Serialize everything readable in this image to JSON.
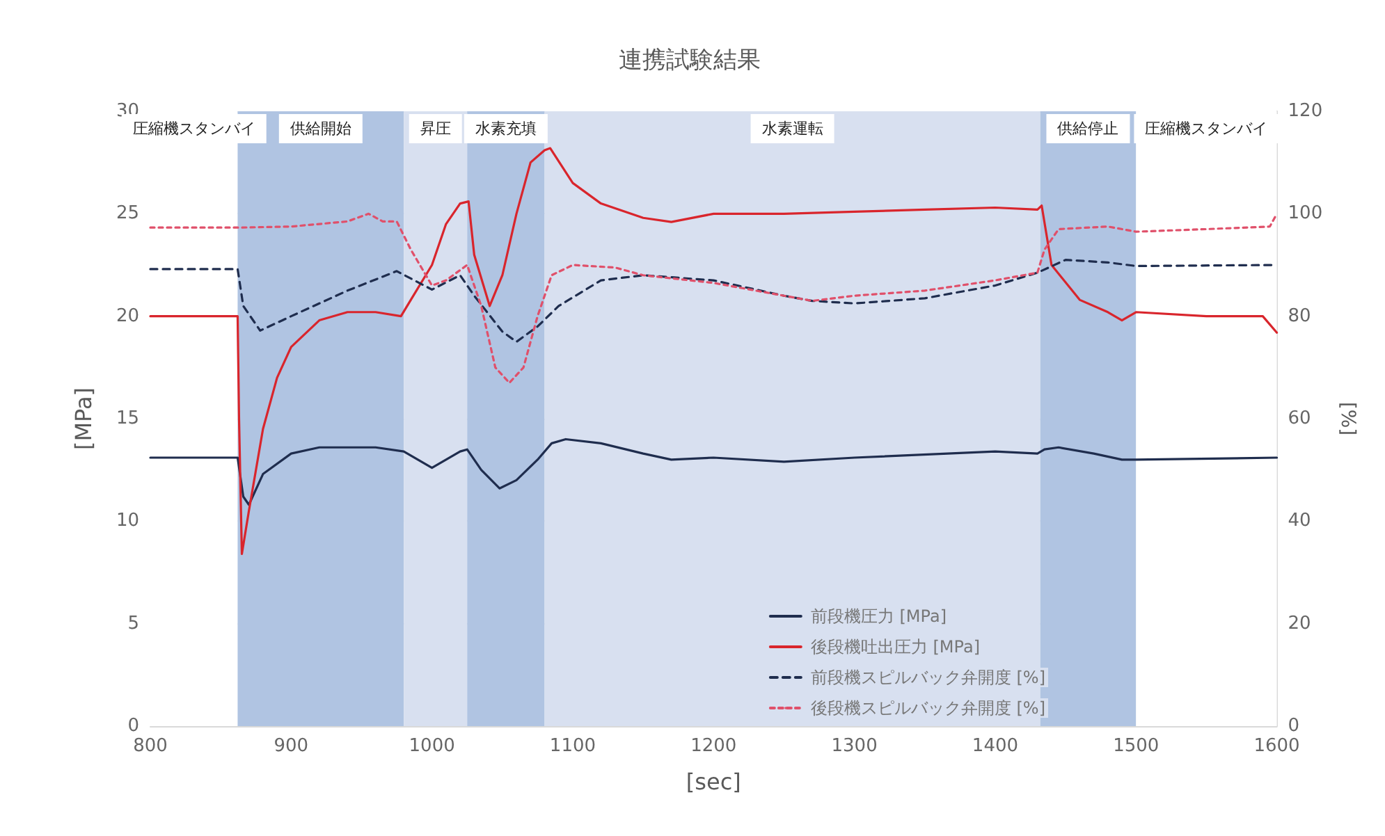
{
  "chart_data": {
    "type": "line",
    "title": "連携試験結果",
    "xlabel": "[sec]",
    "ylabel": "[MPa]",
    "y2label": "[%]",
    "xlim": [
      800,
      1600
    ],
    "xticks": [
      800,
      900,
      1000,
      1100,
      1200,
      1300,
      1400,
      1500,
      1600
    ],
    "ylim": [
      0,
      30
    ],
    "yticks": [
      0,
      5,
      10,
      15,
      20,
      25,
      30
    ],
    "y2lim": [
      0,
      120
    ],
    "y2ticks": [
      0,
      20,
      40,
      60,
      80,
      100,
      120
    ],
    "grid": true,
    "legend": "bottom right",
    "marker": "none",
    "bands": [
      {
        "axis": "x",
        "from": 800,
        "to": 862,
        "label": "圧縮機スタンバイ",
        "color": "#ffffff"
      },
      {
        "axis": "x",
        "from": 862,
        "to": 980,
        "label": "供給開始",
        "color": "#b0c4e2"
      },
      {
        "axis": "x",
        "from": 980,
        "to": 1025,
        "label": "昇圧",
        "color": "#d8e0f0"
      },
      {
        "axis": "x",
        "from": 1025,
        "to": 1080,
        "label": "水素充填",
        "color": "#b0c4e2"
      },
      {
        "axis": "x",
        "from": 1080,
        "to": 1432,
        "label": "水素運転",
        "color": "#d8e0f0"
      },
      {
        "axis": "x",
        "from": 1432,
        "to": 1500,
        "label": "供給停止",
        "color": "#b0c4e2"
      },
      {
        "axis": "x",
        "from": 1500,
        "to": 1600,
        "label": "圧縮機スタンバイ",
        "color": "#ffffff"
      }
    ],
    "series": [
      {
        "name": "前段機圧力 [MPa]",
        "color": "#1f2d4e",
        "line_style": "solid",
        "x": [
          800,
          862,
          866,
          870,
          880,
          900,
          920,
          960,
          980,
          1000,
          1020,
          1025,
          1035,
          1048,
          1060,
          1075,
          1085,
          1095,
          1120,
          1150,
          1170,
          1200,
          1250,
          1300,
          1400,
          1430,
          1435,
          1445,
          1470,
          1490,
          1500,
          1600
        ],
        "values": [
          13.1,
          13.1,
          11.2,
          10.8,
          12.3,
          13.3,
          13.6,
          13.6,
          13.4,
          12.6,
          13.4,
          13.5,
          12.5,
          11.6,
          12,
          13,
          13.8,
          14,
          13.8,
          13.3,
          13,
          13.1,
          12.9,
          13.1,
          13.4,
          13.3,
          13.5,
          13.6,
          13.3,
          13,
          13,
          13.1
        ]
      },
      {
        "name": "後段機吐出圧力 [MPa]",
        "color": "#d9252c",
        "line_style": "solid",
        "x": [
          800,
          830,
          862,
          863,
          865,
          870,
          880,
          890,
          900,
          920,
          940,
          960,
          978,
          985,
          1000,
          1010,
          1020,
          1026,
          1030,
          1041,
          1050,
          1060,
          1070,
          1080,
          1084,
          1100,
          1120,
          1150,
          1170,
          1200,
          1250,
          1300,
          1350,
          1400,
          1430,
          1433,
          1440,
          1460,
          1480,
          1490,
          1500,
          1550,
          1590,
          1600
        ],
        "values": [
          20,
          20,
          20,
          15,
          8.4,
          10.5,
          14.5,
          17,
          18.5,
          19.8,
          20.2,
          20.2,
          20,
          20.8,
          22.5,
          24.5,
          25.5,
          25.6,
          23,
          20.5,
          22,
          25,
          27.5,
          28.1,
          28.2,
          26.5,
          25.5,
          24.8,
          24.6,
          25,
          25,
          25.1,
          25.2,
          25.3,
          25.2,
          25.4,
          22.5,
          20.8,
          20.2,
          19.8,
          20.2,
          20,
          20,
          19.2
        ]
      },
      {
        "name": "前段機スピルバック弁開度 [%]",
        "color": "#1f2d4e",
        "line_style": "dashed",
        "axis": "y2",
        "x": [
          800,
          862,
          866,
          878,
          900,
          940,
          975,
          1000,
          1020,
          1030,
          1050,
          1060,
          1075,
          1090,
          1120,
          1150,
          1200,
          1250,
          1270,
          1300,
          1350,
          1400,
          1430,
          1450,
          1480,
          1500,
          1600
        ],
        "values": [
          89.2,
          89.2,
          82,
          77.2,
          80,
          85,
          88.8,
          85.2,
          88,
          84,
          77,
          75,
          78,
          82,
          87,
          88,
          87,
          84,
          83,
          82.5,
          83.5,
          86,
          88.5,
          91,
          90.5,
          89.8,
          90
        ]
      },
      {
        "name": "後段機スピルバック弁開度 [%]",
        "color": "#e0506a",
        "line_style": "dotted",
        "axis": "y2",
        "x": [
          800,
          862,
          900,
          940,
          955,
          965,
          975,
          985,
          1000,
          1010,
          1025,
          1035,
          1045,
          1055,
          1065,
          1075,
          1085,
          1100,
          1130,
          1150,
          1200,
          1250,
          1270,
          1300,
          1350,
          1400,
          1430,
          1435,
          1445,
          1480,
          1500,
          1550,
          1595,
          1600
        ],
        "values": [
          97.3,
          97.3,
          97.5,
          98.5,
          100,
          98.5,
          98.5,
          93,
          86,
          87,
          90,
          82,
          70,
          67,
          70,
          80,
          88,
          90,
          89.5,
          88,
          86.5,
          84,
          83,
          84,
          85,
          87,
          88.5,
          93,
          97,
          97.5,
          96.5,
          97,
          97.5,
          100
        ]
      }
    ]
  }
}
